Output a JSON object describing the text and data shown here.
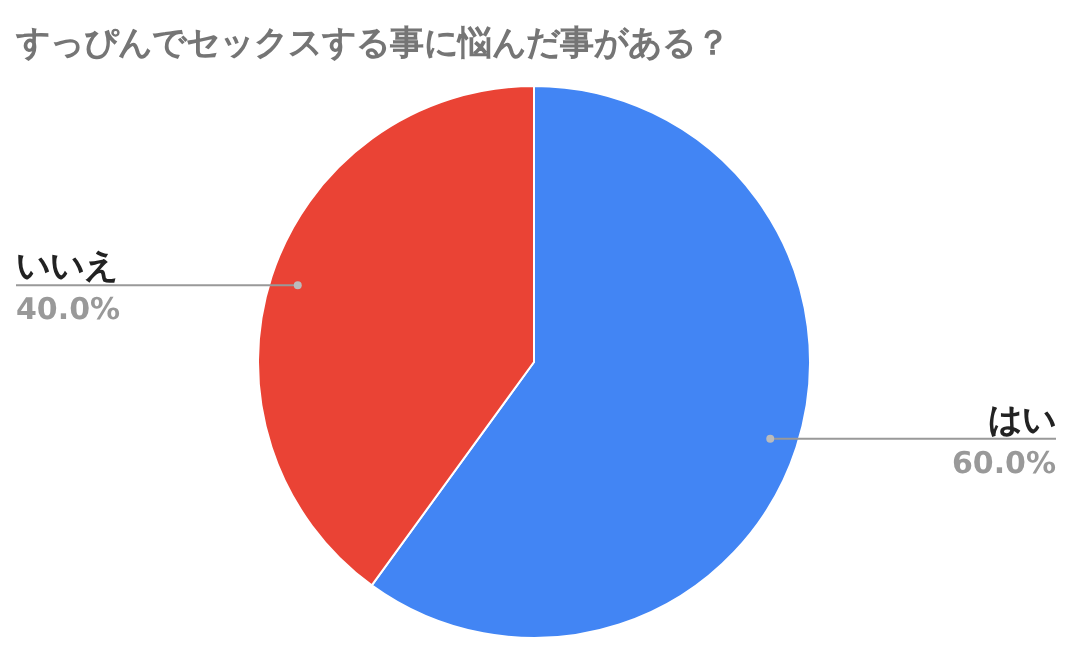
{
  "chart_data": {
    "type": "pie",
    "title": "すっぴんでセックスする事に悩んだ事がある？",
    "categories": [
      "はい",
      "いいえ"
    ],
    "values": [
      60,
      40
    ],
    "colors": [
      "#4285f4",
      "#ea4335"
    ],
    "value_labels": [
      "60.0%",
      "40.0%"
    ],
    "legend": false
  }
}
